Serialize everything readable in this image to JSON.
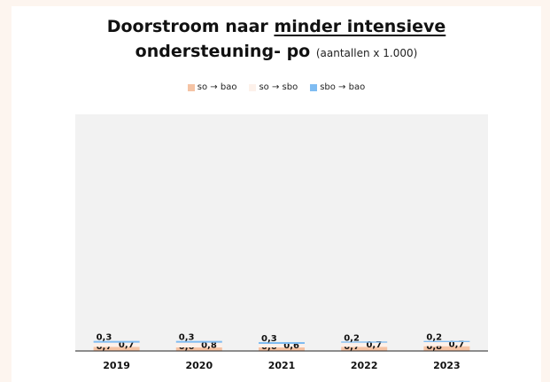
{
  "title": {
    "part1": "Doorstroom naar",
    "part2": "minder intensieve",
    "part3": "ondersteuning- po",
    "subtitle": "(aantallen x 1.000)"
  },
  "chart_data": {
    "type": "bar",
    "stacked": true,
    "categories": [
      "2019",
      "2020",
      "2021",
      "2022",
      "2023"
    ],
    "series": [
      {
        "name": "so → bao",
        "color": "#f5c3a4",
        "values": [
          0.7,
          0.6,
          0.6,
          0.7,
          0.8
        ]
      },
      {
        "name": "so → sbo",
        "color": "#fdf1ea",
        "values": [
          0.7,
          0.8,
          0.6,
          0.7,
          0.7
        ]
      },
      {
        "name": "sbo → bao",
        "color": "#7fbcf2",
        "values": [
          0.3,
          0.3,
          0.3,
          0.2,
          0.2
        ]
      }
    ],
    "ylim": [
      0,
      40
    ],
    "xlabel": "",
    "ylabel": "",
    "grid": false,
    "legend_position": "top",
    "plot_background": "#f2f2f2"
  }
}
